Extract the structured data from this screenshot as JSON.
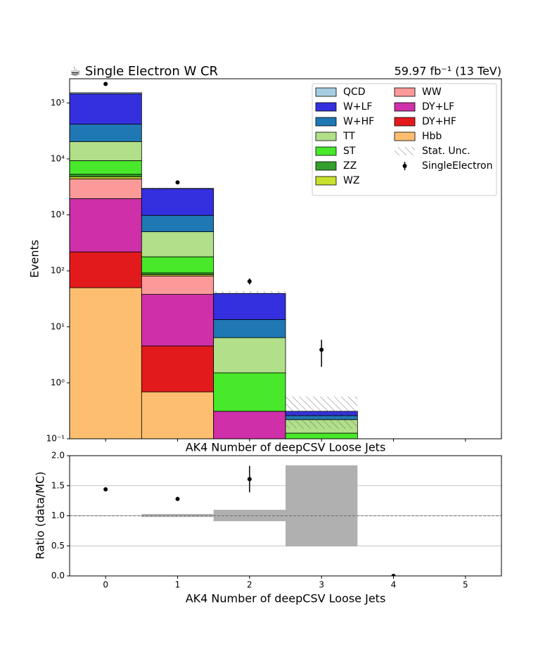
{
  "chart_data": [
    {
      "type": "stack",
      "title": "☕ Single Electron W CR",
      "subtitle": "59.97 fb⁻¹ (13 TeV)",
      "xlabel": "AK4 Number of deepCSV Loose Jets",
      "ylabel": "Events",
      "log_scale": true,
      "x": [
        0,
        1,
        2,
        3,
        4,
        5
      ],
      "xlim": [
        -0.5,
        5.5
      ],
      "xticks": [
        0,
        1,
        2,
        3,
        4,
        5
      ],
      "ylim": [
        0.1,
        270000
      ],
      "yticks": [
        {
          "value": 0.1,
          "label": "10⁻¹"
        },
        {
          "value": 1,
          "label": "10⁰"
        },
        {
          "value": 10,
          "label": "10¹"
        },
        {
          "value": 100,
          "label": "10²"
        },
        {
          "value": 1000,
          "label": "10³"
        },
        {
          "value": 10000,
          "label": "10⁴"
        },
        {
          "value": 100000,
          "label": "10⁵"
        }
      ],
      "legend": "upper right",
      "series": [
        {
          "name": "QCD",
          "color": "#a6cee3",
          "values": [
            7000,
            30,
            0,
            0,
            0,
            0
          ]
        },
        {
          "name": "W+LF",
          "color": "#3430df",
          "values": [
            103300,
            1960,
            26,
            0.05,
            0,
            0
          ]
        },
        {
          "name": "W+HF",
          "color": "#1f78b4",
          "values": [
            21300,
            480,
            7.1,
            0.04,
            0,
            0
          ]
        },
        {
          "name": "TT",
          "color": "#b2df8a",
          "values": [
            11100,
            322,
            4.9,
            0.094,
            0,
            0
          ]
        },
        {
          "name": "ST",
          "color": "#48e82a",
          "values": [
            4000,
            86,
            1.2,
            0.126,
            0,
            0
          ]
        },
        {
          "name": "ZZ",
          "color": "#33a02c",
          "values": [
            500,
            6,
            0,
            0,
            0,
            0
          ]
        },
        {
          "name": "WZ",
          "color": "#c8e02e",
          "values": [
            400,
            5,
            0,
            0,
            0,
            0
          ]
        },
        {
          "name": "WW",
          "color": "#fb9a99",
          "values": [
            2450,
            43,
            0,
            0,
            0,
            0
          ]
        },
        {
          "name": "DY+LF",
          "color": "#cf2fa8",
          "values": [
            1730,
            33.5,
            0.31,
            0,
            0,
            0
          ]
        },
        {
          "name": "DY+HF",
          "color": "#e31a1c",
          "values": [
            168,
            3.86,
            0,
            0,
            0,
            0
          ]
        },
        {
          "name": "Hbb",
          "color": "#fdbf6f",
          "values": [
            50,
            0.69,
            0,
            0,
            0,
            0
          ]
        }
      ],
      "unc_name": "Stat. Unc.",
      "unc_low": [
        0.995,
        0.98,
        0.91,
        0.49,
        null,
        null
      ],
      "unc_high": [
        1.005,
        1.03,
        1.1,
        1.84,
        null,
        null
      ],
      "data": {
        "name": "SingleElectron",
        "color": "#000000",
        "values": [
          218000,
          3800,
          65,
          3.9,
          null,
          null
        ],
        "errors": [
          470,
          62,
          8,
          1.97,
          null,
          null
        ]
      }
    },
    {
      "type": "ratio",
      "xlabel": "AK4 Number of deepCSV Loose Jets",
      "ylabel": "Ratio (data/MC)",
      "x": [
        0,
        1,
        2,
        3,
        4,
        5
      ],
      "xlim": [
        -0.5,
        5.5
      ],
      "xticks": [
        0,
        1,
        2,
        3,
        4,
        5
      ],
      "ylim": [
        0,
        2
      ],
      "yticks": [
        {
          "value": 0,
          "label": "0.0"
        },
        0.5,
        {
          "value": 1,
          "label": "1.0"
        },
        1.5,
        {
          "value": 2,
          "label": "2.0"
        }
      ],
      "grid": true,
      "reference": 1,
      "band_color": "#b0b0b0",
      "values": [
        1.44,
        1.28,
        1.61,
        null,
        0,
        null
      ],
      "errors": [
        0.003,
        0.02,
        0.22,
        null,
        null,
        null
      ]
    }
  ]
}
